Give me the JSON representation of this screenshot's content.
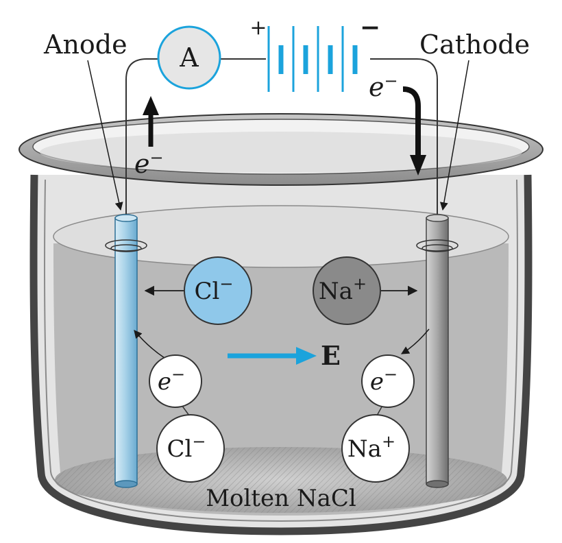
{
  "labels": {
    "anode": "Anode",
    "cathode": "Cathode",
    "ammeter": "A",
    "battery_plus": "+",
    "battery_minus": "−",
    "electron_base": "e",
    "electron_charge": "−",
    "chloride_base": "Cl",
    "chloride_charge": "−",
    "sodium_base": "Na",
    "sodium_charge": "+",
    "field": "E",
    "electrolyte": "Molten NaCl"
  },
  "colors": {
    "accent_blue": "#1ba3dc",
    "anode_blue": "#a9d3e9",
    "chloride_fill": "#8fc8ea",
    "sodium_fill": "#8a8a8a",
    "liquid": "#b9b9b9",
    "beaker_rim": "#9a9a9a",
    "ammeter_fill": "#e6e6e6"
  },
  "icons": {
    "ammeter": "ammeter-circle-icon",
    "battery": "battery-cells-icon",
    "field_arrow": "right-arrow-icon"
  }
}
